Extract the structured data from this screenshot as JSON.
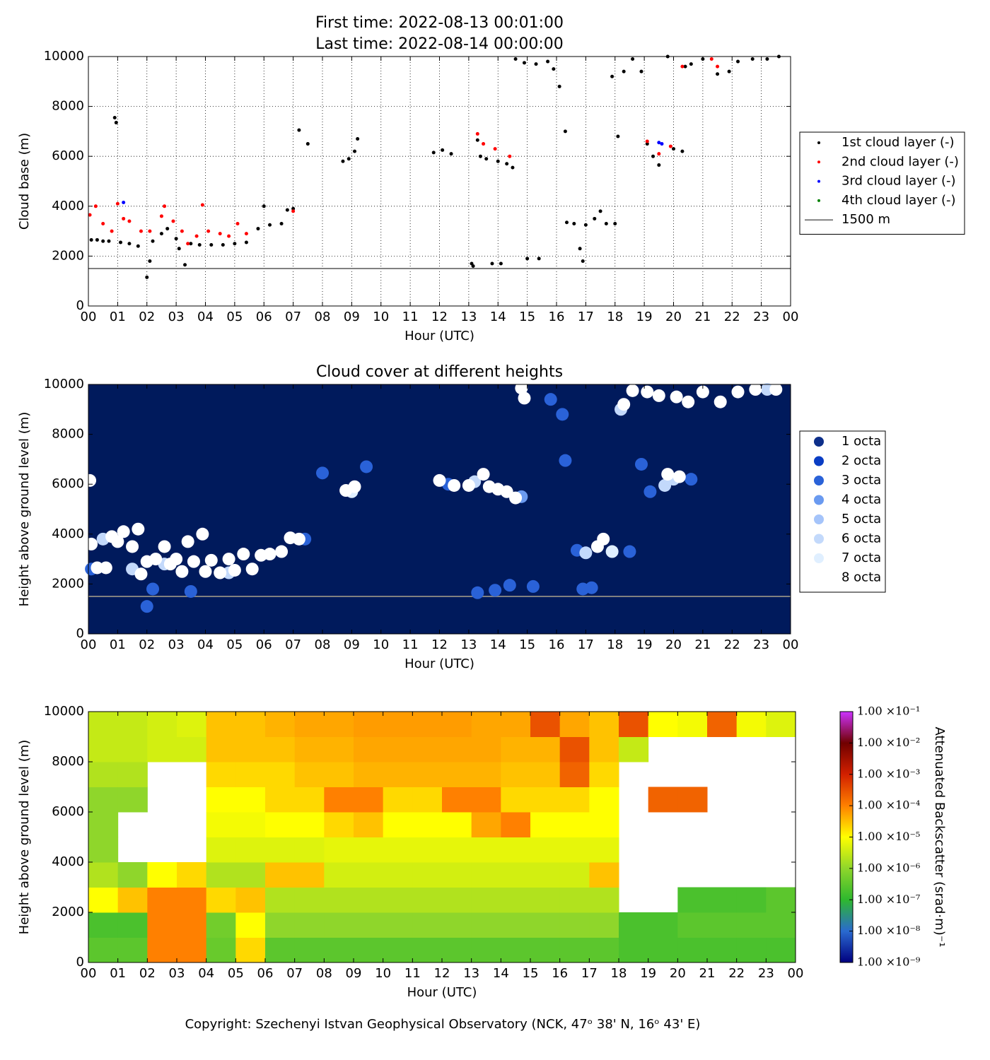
{
  "chart_data": [
    {
      "type": "scatter",
      "title": "First time: 2022-08-13 00:01:00",
      "subtitle": "Last time: 2022-08-14 00:00:00",
      "xlabel": "Hour (UTC)",
      "ylabel": "Cloud base (m)",
      "grid": true,
      "legend": "outside right",
      "background": "#ffffff",
      "marker_radius": 2.5,
      "xlim": [
        0,
        24
      ],
      "ylim": [
        0,
        10000
      ],
      "xticks": [
        {
          "value": 0,
          "label": "00"
        },
        {
          "value": 1,
          "label": "01"
        },
        {
          "value": 2,
          "label": "02"
        },
        {
          "value": 3,
          "label": "03"
        },
        {
          "value": 4,
          "label": "04"
        },
        {
          "value": 5,
          "label": "05"
        },
        {
          "value": 6,
          "label": "06"
        },
        {
          "value": 7,
          "label": "07"
        },
        {
          "value": 8,
          "label": "08"
        },
        {
          "value": 9,
          "label": "09"
        },
        10,
        11,
        12,
        13,
        14,
        15,
        16,
        17,
        18,
        19,
        20,
        21,
        22,
        23,
        {
          "value": 24,
          "label": "00"
        }
      ],
      "yticks": [
        0,
        2000,
        4000,
        6000,
        8000,
        10000
      ],
      "hlines": [
        {
          "name": "1500 m",
          "value": 1500,
          "color": "#808080"
        }
      ],
      "series": [
        {
          "name": "1st cloud layer (-)",
          "color": "#000000",
          "x": [
            0.1,
            0.3,
            0.5,
            0.7,
            0.9,
            0.95,
            1.1,
            1.4,
            1.7,
            2.0,
            2.1,
            2.2,
            2.5,
            2.7,
            3.0,
            3.1,
            3.3,
            3.5,
            3.8,
            4.2,
            4.6,
            5.0,
            5.4,
            5.8,
            6.0,
            6.2,
            6.6,
            6.8,
            7.0,
            7.2,
            7.5,
            8.7,
            8.9,
            9.1,
            9.2,
            11.8,
            12.1,
            12.4,
            13.1,
            13.15,
            13.3,
            13.4,
            13.6,
            13.8,
            14.0,
            14.1,
            14.3,
            14.5,
            14.6,
            14.9,
            15.0,
            15.3,
            15.4,
            15.7,
            15.9,
            16.1,
            16.3,
            16.35,
            16.6,
            16.8,
            16.9,
            17.0,
            17.3,
            17.5,
            17.7,
            17.9,
            18.0,
            18.1,
            18.3,
            18.6,
            18.9,
            19.1,
            19.3,
            19.5,
            19.8,
            20.0,
            20.3,
            20.4,
            20.6,
            21.0,
            21.5,
            21.9,
            22.2,
            22.7,
            23.2,
            23.6
          ],
          "values": [
            2650,
            2650,
            2600,
            2600,
            7550,
            7350,
            2550,
            2500,
            2400,
            1150,
            1800,
            2600,
            2900,
            3100,
            2700,
            2300,
            1650,
            2500,
            2450,
            2450,
            2450,
            2500,
            2550,
            3100,
            4000,
            3250,
            3300,
            3850,
            3900,
            7050,
            6500,
            5800,
            5900,
            6200,
            6700,
            6150,
            6250,
            6100,
            1700,
            1600,
            6650,
            6000,
            5900,
            1700,
            5800,
            1700,
            5700,
            5550,
            9900,
            9750,
            1900,
            9700,
            1900,
            9800,
            9500,
            8800,
            7000,
            3350,
            3300,
            2300,
            1800,
            3250,
            3500,
            3800,
            3300,
            9200,
            3300,
            6800,
            9400,
            9900,
            9400,
            6500,
            6000,
            5650,
            10000,
            6300,
            6200,
            9600,
            9700,
            9900,
            9300,
            9400,
            9800,
            9900,
            9900,
            10000
          ]
        },
        {
          "name": "2nd cloud layer (-)",
          "color": "#ff0000",
          "x": [
            0.05,
            0.25,
            0.5,
            0.8,
            1.0,
            1.2,
            1.4,
            1.8,
            2.1,
            2.5,
            2.6,
            2.9,
            3.2,
            3.4,
            3.7,
            3.9,
            4.1,
            4.5,
            4.8,
            5.1,
            5.4,
            7.0,
            13.3,
            13.5,
            13.9,
            14.4,
            19.1,
            19.5,
            19.9,
            20.3,
            21.3,
            21.5
          ],
          "values": [
            3650,
            4000,
            3300,
            3000,
            4100,
            3500,
            3400,
            3000,
            3000,
            3600,
            4000,
            3400,
            3000,
            2500,
            2800,
            4050,
            3000,
            2900,
            2800,
            3300,
            2900,
            3800,
            6900,
            6500,
            6300,
            6000,
            6600,
            6100,
            6400,
            9600,
            9900,
            9600
          ]
        },
        {
          "name": "3rd cloud layer (-)",
          "color": "#0000ff",
          "x": [
            1.2,
            19.5,
            19.6
          ],
          "values": [
            4150,
            6550,
            6500
          ]
        },
        {
          "name": "4th cloud layer (-)",
          "color": "#008000",
          "x": [],
          "values": []
        }
      ]
    },
    {
      "type": "scatter",
      "title": "Cloud cover at different heights",
      "xlabel": "Hour (UTC)",
      "ylabel": "Height above ground level (m)",
      "grid": false,
      "legend": "outside right",
      "background": "#001a5c",
      "marker_radius": 9,
      "xlim": [
        0,
        24
      ],
      "ylim": [
        0,
        10000
      ],
      "xticks": [
        {
          "value": 0,
          "label": "00"
        },
        {
          "value": 1,
          "label": "01"
        },
        {
          "value": 2,
          "label": "02"
        },
        {
          "value": 3,
          "label": "03"
        },
        {
          "value": 4,
          "label": "04"
        },
        {
          "value": 5,
          "label": "05"
        },
        {
          "value": 6,
          "label": "06"
        },
        {
          "value": 7,
          "label": "07"
        },
        {
          "value": 8,
          "label": "08"
        },
        {
          "value": 9,
          "label": "09"
        },
        10,
        11,
        12,
        13,
        14,
        15,
        16,
        17,
        18,
        19,
        20,
        21,
        22,
        23,
        {
          "value": 24,
          "label": "00"
        }
      ],
      "yticks": [
        0,
        2000,
        4000,
        6000,
        8000,
        10000
      ],
      "hlines": [
        {
          "value": 1500,
          "color": "#808080"
        }
      ],
      "series": [
        {
          "name": "1 octa",
          "color": "#0d2f8a",
          "x": [],
          "values": []
        },
        {
          "name": "2 octa",
          "color": "#0a3dc4",
          "x": [],
          "values": []
        },
        {
          "name": "3 octa",
          "color": "#2a62d8",
          "x": [
            0.1,
            2.0,
            2.2,
            3.5,
            7.4,
            8.0,
            9.5,
            12.3,
            13.3,
            13.9,
            14.4,
            15.2,
            15.8,
            16.2,
            16.3,
            16.7,
            16.9,
            17.2,
            18.5,
            18.9,
            19.2,
            20.6
          ],
          "values": [
            2600,
            1100,
            1800,
            1700,
            3800,
            6450,
            6700,
            6000,
            1650,
            1750,
            1950,
            1900,
            9400,
            8800,
            6950,
            3350,
            1800,
            1850,
            3300,
            6800,
            5700,
            6200
          ]
        },
        {
          "name": "4 octa",
          "color": "#6a9af0",
          "x": [
            14.8
          ],
          "values": [
            5500
          ]
        },
        {
          "name": "5 octa",
          "color": "#a5c4fa",
          "x": [],
          "values": []
        },
        {
          "name": "6 octa",
          "color": "#c3d9fb",
          "x": [
            0.5,
            1.5,
            2.6,
            4.8,
            13.2,
            17.0,
            18.2,
            19.7,
            20.0,
            23.2
          ],
          "values": [
            3800,
            2600,
            2800,
            2450,
            6100,
            3250,
            9000,
            5950,
            6200,
            9800
          ]
        },
        {
          "name": "7 octa",
          "color": "#e0efff",
          "x": [
            9.0,
            17.9
          ],
          "values": [
            5700,
            3300
          ]
        },
        {
          "name": "8 octa",
          "color": "#ffffff",
          "x": [
            0.05,
            0.1,
            0.3,
            0.6,
            0.8,
            1.0,
            1.2,
            1.5,
            1.7,
            1.8,
            2.0,
            2.3,
            2.6,
            2.8,
            3.0,
            3.2,
            3.4,
            3.6,
            3.9,
            4.0,
            4.2,
            4.5,
            4.8,
            5.0,
            5.3,
            5.6,
            5.9,
            6.2,
            6.6,
            6.9,
            7.2,
            8.8,
            9.1,
            12.0,
            12.5,
            13.0,
            13.5,
            13.7,
            14.0,
            14.3,
            14.6,
            14.8,
            14.9,
            17.4,
            17.6,
            18.3,
            18.6,
            19.1,
            19.5,
            19.8,
            20.1,
            20.2,
            20.5,
            21.0,
            21.6,
            22.2,
            22.8,
            23.5
          ],
          "values": [
            6150,
            3600,
            2650,
            2650,
            3900,
            3700,
            4100,
            3500,
            4200,
            2400,
            2900,
            3000,
            3500,
            2800,
            3000,
            2500,
            3700,
            2900,
            4000,
            2500,
            2950,
            2450,
            3000,
            2550,
            3200,
            2600,
            3150,
            3200,
            3300,
            3850,
            3800,
            5750,
            5900,
            6150,
            5950,
            5950,
            6400,
            5900,
            5800,
            5700,
            5450,
            9850,
            9450,
            3500,
            3800,
            9200,
            9750,
            9700,
            9550,
            6400,
            9500,
            6300,
            9300,
            9700,
            9300,
            9700,
            9800,
            9800
          ]
        }
      ]
    },
    {
      "type": "heatmap",
      "xlabel": "Hour (UTC)",
      "ylabel": "Height above ground level (m)",
      "colorbar_label": "Attenuated Backscatter (srad·m)⁻¹",
      "colorscale": "log",
      "colormap": [
        "#00007f",
        "#2a6ad0",
        "#2eb82e",
        "#8fd62b",
        "#ffff00",
        "#ff8000",
        "#d22000",
        "#700000",
        "#cc33ff"
      ],
      "clim": [
        1e-09,
        0.1
      ],
      "cticks": [
        {
          "value": 1e-09,
          "label": "1.00 ×10⁻⁹"
        },
        {
          "value": 1e-08,
          "label": "1.00 ×10⁻⁸"
        },
        {
          "value": 1e-07,
          "label": "1.00 ×10⁻⁷"
        },
        {
          "value": 1e-06,
          "label": "1.00 ×10⁻⁶"
        },
        {
          "value": 1e-05,
          "label": "1.00 ×10⁻⁵"
        },
        {
          "value": 0.0001,
          "label": "1.00 ×10⁻⁴"
        },
        {
          "value": 0.001,
          "label": "1.00 ×10⁻³"
        },
        {
          "value": 0.01,
          "label": "1.00 ×10⁻²"
        },
        {
          "value": 0.1,
          "label": "1.00 ×10⁻¹"
        }
      ],
      "xlim": [
        0,
        24
      ],
      "ylim": [
        0,
        10000
      ],
      "xticks": [
        {
          "value": 0,
          "label": "00"
        },
        {
          "value": 1,
          "label": "01"
        },
        {
          "value": 2,
          "label": "02"
        },
        {
          "value": 3,
          "label": "03"
        },
        {
          "value": 4,
          "label": "04"
        },
        {
          "value": 5,
          "label": "05"
        },
        {
          "value": 6,
          "label": "06"
        },
        {
          "value": 7,
          "label": "07"
        },
        {
          "value": 8,
          "label": "08"
        },
        {
          "value": 9,
          "label": "09"
        },
        10,
        11,
        12,
        13,
        14,
        15,
        16,
        17,
        18,
        19,
        20,
        21,
        22,
        23,
        {
          "value": 24,
          "label": "00"
        }
      ],
      "yticks": [
        0,
        2000,
        4000,
        6000,
        8000,
        10000
      ],
      "x": [
        0,
        1,
        2,
        3,
        4,
        5,
        6,
        7,
        8,
        9,
        10,
        11,
        12,
        13,
        14,
        15,
        16,
        17,
        18,
        19,
        20,
        21,
        22,
        23,
        24
      ],
      "y": [
        0,
        1000,
        2000,
        3000,
        4000,
        5000,
        6000,
        7000,
        8000,
        9000,
        10000
      ],
      "values": [
        [
          3e-07,
          3e-07,
          0.0001,
          0.0001,
          4e-07,
          2e-05,
          3e-07,
          3e-07,
          3e-07,
          3e-07,
          3e-07,
          3e-07,
          3e-07,
          3e-07,
          3e-07,
          3e-07,
          3e-07,
          3e-07,
          2e-07,
          2e-07,
          2e-07,
          2e-07,
          2e-07,
          2e-07
        ],
        [
          2e-07,
          2e-07,
          0.0001,
          0.0001,
          5e-07,
          1e-05,
          1e-06,
          1e-06,
          1e-06,
          1e-06,
          1e-06,
          1e-06,
          1e-06,
          1e-06,
          1e-06,
          1e-06,
          1e-06,
          1e-06,
          2e-07,
          2e-07,
          3e-07,
          3e-07,
          3e-07,
          3e-07
        ],
        [
          1e-05,
          3e-05,
          0.0001,
          0.0001,
          2e-05,
          3e-05,
          2e-06,
          2e-06,
          2e-06,
          2e-06,
          2e-06,
          2e-06,
          2e-06,
          2e-06,
          2e-06,
          2e-06,
          2e-06,
          2e-06,
          null,
          null,
          2e-07,
          2e-07,
          2e-07,
          3e-07
        ],
        [
          2e-06,
          1e-06,
          1e-05,
          2e-05,
          2e-06,
          2e-06,
          3e-05,
          3e-05,
          4e-06,
          4e-06,
          4e-06,
          4e-06,
          4e-06,
          4e-06,
          4e-06,
          4e-06,
          4e-06,
          3e-05,
          null,
          null,
          null,
          null,
          null,
          null
        ],
        [
          1e-06,
          null,
          null,
          null,
          5e-06,
          5e-06,
          5e-06,
          5e-06,
          6e-06,
          6e-06,
          6e-06,
          6e-06,
          6e-06,
          6e-06,
          6e-06,
          6e-06,
          6e-06,
          6e-06,
          null,
          null,
          null,
          null,
          null,
          null
        ],
        [
          1e-06,
          null,
          null,
          null,
          8e-06,
          8e-06,
          1e-05,
          1e-05,
          2e-05,
          3e-05,
          1e-05,
          1e-05,
          1e-05,
          5e-05,
          0.0001,
          1e-05,
          1e-05,
          1e-05,
          null,
          null,
          null,
          null,
          null,
          null
        ],
        [
          1e-06,
          1e-06,
          null,
          null,
          1e-05,
          1e-05,
          2e-05,
          2e-05,
          0.0001,
          0.0001,
          2e-05,
          2e-05,
          0.0001,
          0.0001,
          2e-05,
          2e-05,
          2e-05,
          1e-05,
          null,
          0.0002,
          0.0002,
          null,
          null,
          null
        ],
        [
          2e-06,
          2e-06,
          null,
          null,
          2e-05,
          2e-05,
          2e-05,
          3e-05,
          3e-05,
          4e-05,
          4e-05,
          4e-05,
          4e-05,
          4e-05,
          3e-05,
          3e-05,
          0.0002,
          2e-05,
          null,
          null,
          null,
          null,
          null,
          null
        ],
        [
          3e-06,
          3e-06,
          4e-06,
          4e-06,
          3e-05,
          3e-05,
          3e-05,
          4e-05,
          4e-05,
          5e-05,
          5e-05,
          5e-05,
          5e-05,
          5e-05,
          4e-05,
          4e-05,
          0.0003,
          3e-05,
          3e-06,
          null,
          null,
          null,
          null,
          null
        ],
        [
          3e-06,
          3e-06,
          4e-06,
          5e-06,
          3e-05,
          3e-05,
          4e-05,
          5e-05,
          5e-05,
          6e-05,
          6e-05,
          6e-05,
          6e-05,
          5e-05,
          5e-05,
          0.0003,
          5e-05,
          3e-05,
          0.0003,
          1e-05,
          8e-06,
          0.0002,
          8e-06,
          5e-06
        ]
      ]
    }
  ],
  "footer": "Copyright: Szechenyi Istvan Geophysical Observatory (NCK, 47ᵒ 38' N, 16ᵒ 43' E)"
}
